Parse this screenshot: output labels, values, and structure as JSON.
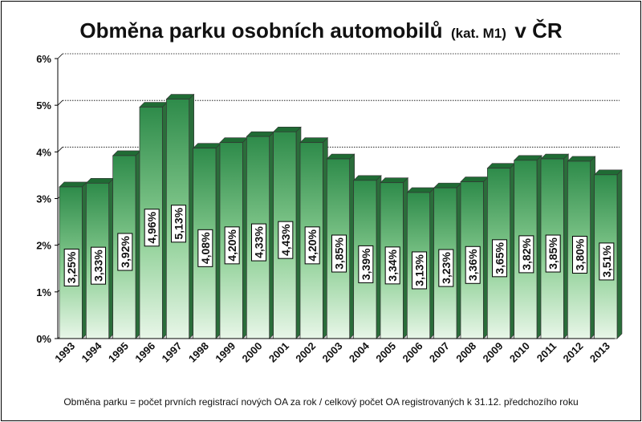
{
  "chart_data": {
    "type": "bar",
    "title": "Obměna parku osobních automobilů",
    "title_sub": "(kat. M1)",
    "title_tail": "v ČR",
    "categories": [
      "1993",
      "1994",
      "1995",
      "1996",
      "1997",
      "1998",
      "1999",
      "2000",
      "2001",
      "2002",
      "2003",
      "2004",
      "2005",
      "2006",
      "2007",
      "2008",
      "2009",
      "2010",
      "2011",
      "2012",
      "2013"
    ],
    "values": [
      3.25,
      3.33,
      3.92,
      4.96,
      5.13,
      4.08,
      4.2,
      4.33,
      4.43,
      4.2,
      3.85,
      3.39,
      3.34,
      3.13,
      3.23,
      3.36,
      3.65,
      3.82,
      3.85,
      3.8,
      3.51
    ],
    "data_labels": [
      "3,25%",
      "3,33%",
      "3,92%",
      "4,96%",
      "5,13%",
      "4,08%",
      "4,20%",
      "4,33%",
      "4,43%",
      "4,20%",
      "3,85%",
      "3,39%",
      "3,34%",
      "3,13%",
      "3,23%",
      "3,36%",
      "3,65%",
      "3,82%",
      "3,85%",
      "3,80%",
      "3,51%"
    ],
    "yticks": [
      "0%",
      "1%",
      "2%",
      "3%",
      "4%",
      "5%",
      "6%"
    ],
    "ylim": [
      0,
      6
    ],
    "grid": true,
    "xlabel": "",
    "ylabel": "",
    "bar_color_top": "#2e8b4a",
    "bar_color_bottom": "#e8f6e8",
    "footnote": "Obměna parku = počet prvních registrací nových OA za rok / celkový počet OA registrovaných k 31.12. předchozího roku"
  }
}
